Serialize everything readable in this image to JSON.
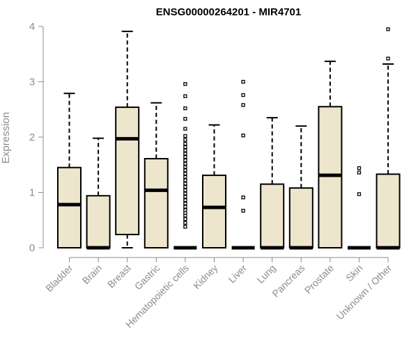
{
  "chart_data": {
    "type": "box",
    "title": "ENSG00000264201 - MIR4701",
    "xlabel": "",
    "ylabel": "Expression",
    "ylim": [
      0,
      4
    ],
    "yticks": [
      "0",
      "1",
      "2",
      "3",
      "4"
    ],
    "grid": false,
    "legend": "none",
    "box_fill": "#ede6cc",
    "box_stroke": "#000000",
    "categories": [
      "Bladder",
      "Brain",
      "Breast",
      "Gastric",
      "Hematopoietic cells",
      "Kidney",
      "Liver",
      "Lung",
      "Pancreas",
      "Prostate",
      "Skin",
      "Unknown / Other"
    ],
    "boxes": [
      {
        "q1": 0.0,
        "median": 0.78,
        "q3": 1.45,
        "whisker_low": 0.0,
        "whisker_high": 2.79,
        "outliers": []
      },
      {
        "q1": 0.0,
        "median": 0.0,
        "q3": 0.94,
        "whisker_low": 0.0,
        "whisker_high": 1.98,
        "outliers": []
      },
      {
        "q1": 0.24,
        "median": 1.97,
        "q3": 2.54,
        "whisker_low": 0.0,
        "whisker_high": 3.91,
        "outliers": []
      },
      {
        "q1": 0.0,
        "median": 1.04,
        "q3": 1.61,
        "whisker_low": 0.0,
        "whisker_high": 2.62,
        "outliers": []
      },
      {
        "q1": 0.0,
        "median": 0.0,
        "q3": 0.0,
        "whisker_low": 0.0,
        "whisker_high": 0.0,
        "outliers": [
          0.38,
          0.45,
          0.52,
          0.58,
          0.63,
          0.68,
          0.74,
          0.8,
          0.86,
          0.92,
          0.98,
          1.04,
          1.1,
          1.16,
          1.22,
          1.28,
          1.34,
          1.4,
          1.46,
          1.52,
          1.58,
          1.64,
          1.7,
          1.76,
          1.82,
          1.88,
          1.95,
          2.02,
          2.15,
          2.33,
          2.52,
          2.74,
          2.96
        ]
      },
      {
        "q1": 0.0,
        "median": 0.73,
        "q3": 1.31,
        "whisker_low": 0.0,
        "whisker_high": 2.22,
        "outliers": []
      },
      {
        "q1": 0.0,
        "median": 0.0,
        "q3": 0.0,
        "whisker_low": 0.0,
        "whisker_high": 0.0,
        "outliers": [
          0.67,
          0.91,
          2.03,
          2.58,
          2.76,
          3.0
        ]
      },
      {
        "q1": 0.0,
        "median": 0.0,
        "q3": 1.15,
        "whisker_low": 0.0,
        "whisker_high": 2.35,
        "outliers": []
      },
      {
        "q1": 0.0,
        "median": 0.0,
        "q3": 1.08,
        "whisker_low": 0.0,
        "whisker_high": 2.2,
        "outliers": []
      },
      {
        "q1": 0.0,
        "median": 1.31,
        "q3": 2.55,
        "whisker_low": 0.0,
        "whisker_high": 3.37,
        "outliers": []
      },
      {
        "q1": 0.0,
        "median": 0.0,
        "q3": 0.0,
        "whisker_low": 0.0,
        "whisker_high": 0.0,
        "outliers": [
          0.97,
          1.36,
          1.44
        ]
      },
      {
        "q1": 0.0,
        "median": 0.0,
        "q3": 1.33,
        "whisker_low": 0.0,
        "whisker_high": 3.32,
        "outliers": [
          3.42,
          3.95
        ]
      }
    ]
  }
}
